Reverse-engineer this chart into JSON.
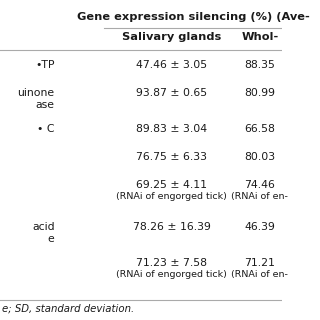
{
  "title": "Gene expression silencing (%) (Ave-",
  "col_headers": [
    "Salivary glands",
    "Whol-"
  ],
  "rows": [
    {
      "label": "•TP",
      "col1": "47.46 ± 3.05",
      "col2": "88.35",
      "col1_sub": "",
      "col2_sub": "",
      "extra_space": false
    },
    {
      "label": "uinone\nase",
      "col1": "93.87 ± 0.65",
      "col2": "80.99",
      "col1_sub": "",
      "col2_sub": "",
      "extra_space": false
    },
    {
      "label": "• C",
      "col1": "89.83 ± 3.04",
      "col2": "66.58",
      "col1_sub": "",
      "col2_sub": "",
      "extra_space": false
    },
    {
      "label": "",
      "col1": "76.75 ± 6.33",
      "col2": "80.03",
      "col1_sub": "",
      "col2_sub": "",
      "extra_space": false
    },
    {
      "label": "",
      "col1": "69.25 ± 4.11",
      "col2": "74.46",
      "col1_sub": "(RNAi of engorged tick)",
      "col2_sub": "(RNAi of en-",
      "extra_space": false
    },
    {
      "label": "acid\ne",
      "col1": "78.26 ± 16.39",
      "col2": "46.39",
      "col1_sub": "",
      "col2_sub": "",
      "extra_space": false
    },
    {
      "label": "",
      "col1": "71.23 ± 7.58",
      "col2": "71.21",
      "col1_sub": "(RNAi of engorged tick)",
      "col2_sub": "(RNAi of en-",
      "extra_space": false
    }
  ],
  "footnote": "e; SD, standard deviation.",
  "bg_color": "#ffffff",
  "text_color": "#1a1a1a",
  "line_color": "#aaaaaa",
  "font_size": 7.8,
  "header_font_size": 8.2,
  "sub_font_size": 6.8
}
